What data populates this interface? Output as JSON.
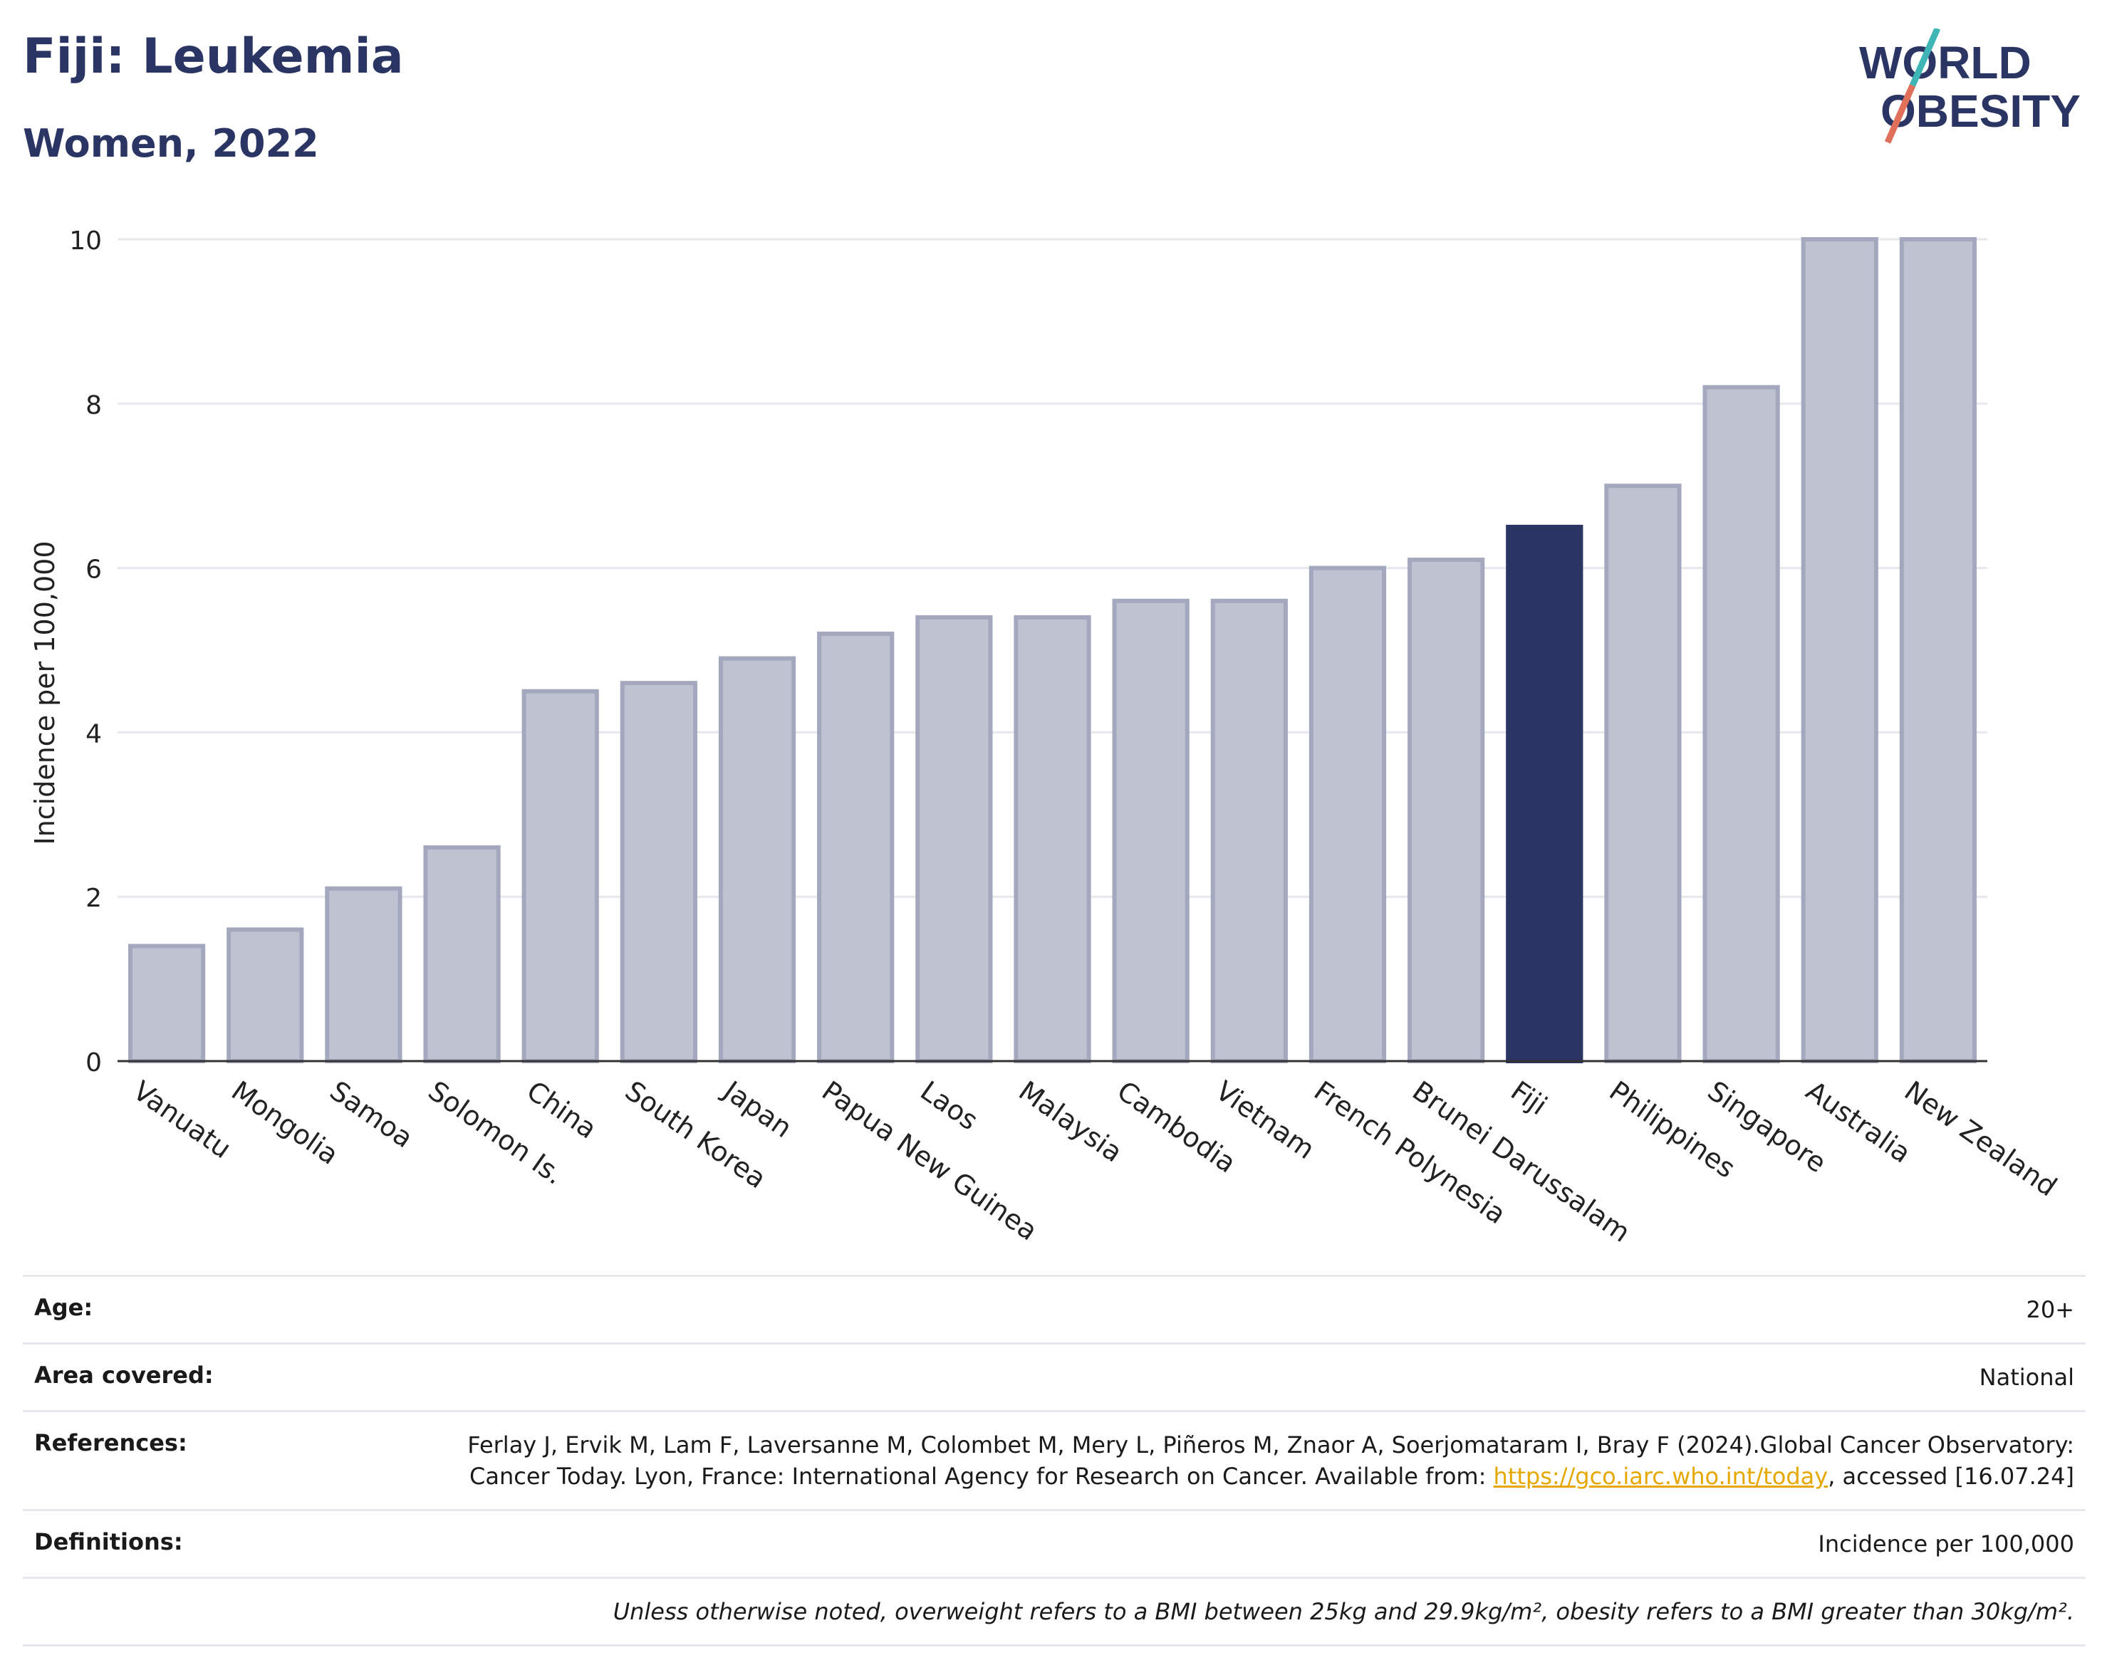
{
  "header": {
    "title": "Fiji: Leukemia",
    "subtitle": "Women, 2022",
    "logo_line1": "WORLD",
    "logo_line2": "OBESITY"
  },
  "chart_data": {
    "type": "bar",
    "title": "Fiji: Leukemia",
    "subtitle": "Women, 2022",
    "xlabel": "",
    "ylabel": "Incidence per 100,000",
    "ylim": [
      0,
      10
    ],
    "yticks": [
      0,
      2,
      4,
      6,
      8,
      10
    ],
    "grid": true,
    "highlight": "Fiji",
    "colors": {
      "bar": "#bfc3d1",
      "bar_edge": "#a3a8bf",
      "highlight": "#2b3563",
      "grid": "#e6e8ee",
      "axis": "#333333"
    },
    "categories": [
      "Vanuatu",
      "Mongolia",
      "Samoa",
      "Solomon Is.",
      "China",
      "South Korea",
      "Japan",
      "Papua New Guinea",
      "Laos",
      "Malaysia",
      "Cambodia",
      "Vietnam",
      "French Polynesia",
      "Brunei Darussalam",
      "Fiji",
      "Philippines",
      "Singapore",
      "Australia",
      "New Zealand"
    ],
    "values": [
      1.4,
      1.6,
      2.1,
      2.6,
      4.5,
      4.6,
      4.9,
      5.2,
      5.4,
      5.4,
      5.6,
      5.6,
      6.0,
      6.1,
      6.5,
      7.0,
      8.2,
      10.0,
      10.0
    ]
  },
  "info": {
    "age_label": "Age:",
    "age_value": "20+",
    "area_label": "Area covered:",
    "area_value": "National",
    "references_label": "References:",
    "references_text": "Ferlay J, Ervik M, Lam F, Laversanne M, Colombet M, Mery L, Piñeros M, Znaor A, Soerjomataram I, Bray F (2024).Global Cancer Observatory: Cancer Today. Lyon, France: International Agency for Research on Cancer. Available from: ",
    "references_link": "https://gco.iarc.who.int/today",
    "references_tail": ", accessed [16.07.24]",
    "definitions_label": "Definitions:",
    "definitions_value": "Incidence per 100,000",
    "note": "Unless otherwise noted, overweight refers to a BMI between 25kg and 29.9kg/m², obesity refers to a BMI greater than 30kg/m²."
  }
}
